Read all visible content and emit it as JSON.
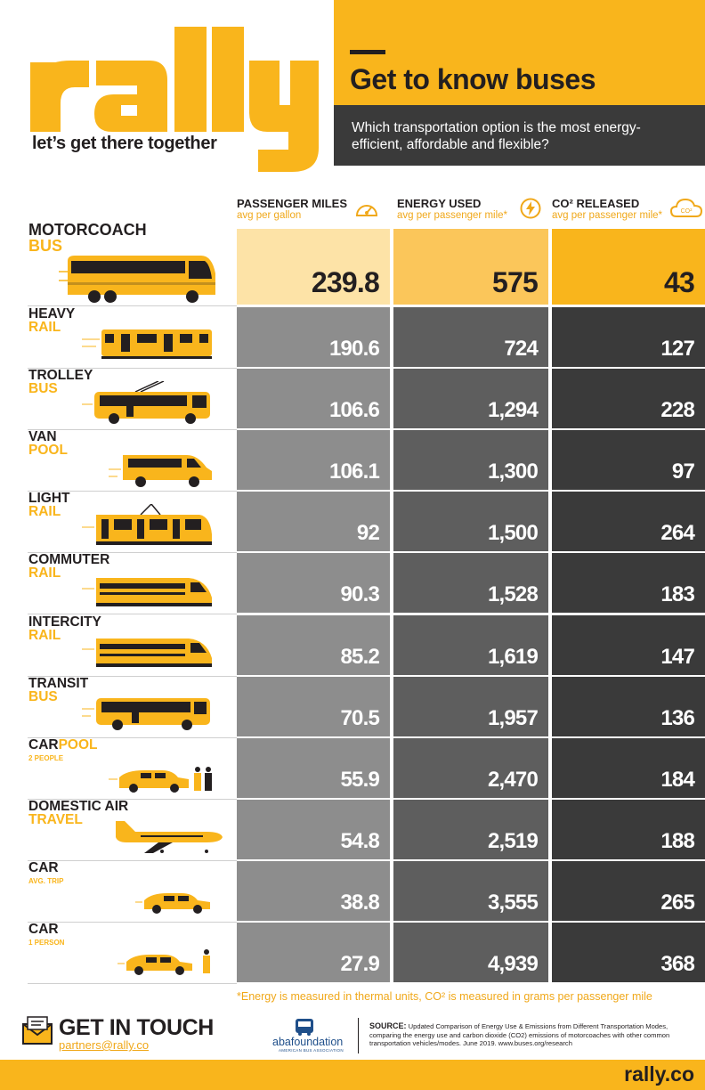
{
  "brand": {
    "logo_text": "rally",
    "tagline": "let’s get there together"
  },
  "header": {
    "title": "Get to know buses",
    "question": "Which transportation option is the most energy-efficient, affordable and flexible?"
  },
  "columns": [
    {
      "title": "PASSENGER MILES",
      "subtitle": "avg per gallon",
      "icon": "speedometer-icon"
    },
    {
      "title": "ENERGY USED",
      "subtitle": "avg per passenger mile*",
      "icon": "lightning-bolt-icon"
    },
    {
      "title": "CO² RELEASED",
      "subtitle": "avg per passenger mile*",
      "icon": "co2-cloud-icon"
    }
  ],
  "rows": [
    {
      "label1": "MOTORCOACH",
      "label2": "BUS",
      "vehicle": "motorcoach-icon",
      "passenger_miles": "239.8",
      "energy_used": "575",
      "co2_released": "43"
    },
    {
      "label1": "HEAVY",
      "label2": "RAIL",
      "vehicle": "heavy-rail-icon",
      "passenger_miles": "190.6",
      "energy_used": "724",
      "co2_released": "127"
    },
    {
      "label1": "TROLLEY",
      "label2": "BUS",
      "vehicle": "trolley-bus-icon",
      "passenger_miles": "106.6",
      "energy_used": "1,294",
      "co2_released": "228"
    },
    {
      "label1": "VAN",
      "label2": "POOL",
      "vehicle": "van-icon",
      "passenger_miles": "106.1",
      "energy_used": "1,300",
      "co2_released": "97"
    },
    {
      "label1": "LIGHT",
      "label2": "RAIL",
      "vehicle": "light-rail-icon",
      "passenger_miles": "92",
      "energy_used": "1,500",
      "co2_released": "264"
    },
    {
      "label1": "COMMUTER",
      "label2": "RAIL",
      "vehicle": "commuter-rail-icon",
      "passenger_miles": "90.3",
      "energy_used": "1,528",
      "co2_released": "183"
    },
    {
      "label1": "INTERCITY",
      "label2": "RAIL",
      "vehicle": "intercity-rail-icon",
      "passenger_miles": "85.2",
      "energy_used": "1,619",
      "co2_released": "147"
    },
    {
      "label1": "TRANSIT",
      "label2": "BUS",
      "vehicle": "transit-bus-icon",
      "passenger_miles": "70.5",
      "energy_used": "1,957",
      "co2_released": "136"
    },
    {
      "label1": "CAR",
      "label1b": "POOL",
      "label2": "2 PEOPLE",
      "vehicle": "carpool-icon",
      "passenger_miles": "55.9",
      "energy_used": "2,470",
      "co2_released": "184"
    },
    {
      "label1": "DOMESTIC AIR",
      "label2": "TRAVEL",
      "vehicle": "airplane-icon",
      "passenger_miles": "54.8",
      "energy_used": "2,519",
      "co2_released": "188"
    },
    {
      "label1": "CAR",
      "label2": "AVG. TRIP",
      "vehicle": "car-icon",
      "passenger_miles": "38.8",
      "energy_used": "3,555",
      "co2_released": "265"
    },
    {
      "label1": "CAR",
      "label2": "1 PERSON",
      "vehicle": "car-single-icon",
      "passenger_miles": "27.9",
      "energy_used": "4,939",
      "co2_released": "368"
    }
  ],
  "footnote": "*Energy is measured in thermal units, CO² is measured in grams per passenger mile",
  "contact": {
    "title": "GET IN TOUCH",
    "email": "partners@rally.co"
  },
  "partner": {
    "name": "abafoundation",
    "subline": "AMERICAN BUS ASSOCIATION"
  },
  "source": {
    "label": "SOURCE:",
    "text": "Updated Comparison of Energy Use & Emissions from Different Transportation Modes, comparing the energy use and carbon dioxide (CO2) emissions of motorcoaches with other common transportation vehicles/modes. June 2019. www.buses.org/research"
  },
  "site": "rally.co",
  "colors": {
    "brand_yellow": "#f9b51c",
    "highlight_light": "#fde3a7",
    "highlight_mid": "#fbc65a",
    "col1": "#8d8d8d",
    "col2": "#5e5e5e",
    "col3": "#3a3a3a"
  }
}
